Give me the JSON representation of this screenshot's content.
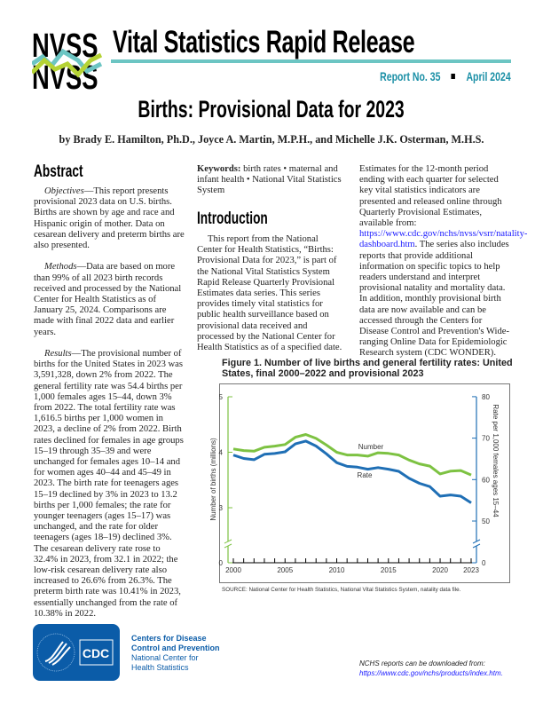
{
  "header": {
    "logo_text": "NVSS",
    "series_title": "Vital Statistics Rapid Release",
    "report_no": "Report No. 35",
    "date": "April 2024"
  },
  "title": "Births: Provisional Data for 2023",
  "authors": "by Brady E. Hamilton, Ph.D., Joyce A. Martin, M.P.H., and Michelle J.K. Osterman, M.H.S.",
  "abstract": {
    "heading": "Abstract",
    "objectives_label": "Objectives",
    "objectives": "—This report presents provisional 2023 data on U.S. births. Births are shown by age and race and Hispanic origin of mother. Data on cesarean delivery and preterm births are also presented.",
    "methods_label": "Methods",
    "methods": "—Data are based on more than 99% of all 2023 birth records received and processed by the National Center for Health Statistics as of January 25, 2024. Comparisons are made with final 2022 data and earlier years.",
    "results_label": "Results",
    "results": "—The provisional number of births for the United States in 2023 was 3,591,328, down 2% from 2022. The general fertility rate was 54.4 births per 1,000 females ages 15–44, down 3% from 2022. The total fertility rate was 1,616.5 births per 1,000 women in 2023, a decline of 2% from 2022. Birth rates declined for females in age groups 15–19 through 35–39 and were unchanged for females ages 10–14 and for women ages 40–44 and 45–49 in 2023. The birth rate for teenagers ages 15–19 declined by 3% in 2023 to 13.2 births per 1,000 females; the rate for younger teenagers (ages 15–17) was unchanged, and the rate for older teenagers (ages 18–19) declined 3%. The cesarean delivery rate rose to 32.4% in 2023, from 32.1 in 2022; the low-risk cesarean delivery rate also increased to 26.6% from 26.3%. The preterm birth rate was 10.41% in 2023, essentially unchanged from the rate of 10.38% in 2022."
  },
  "keywords": {
    "label": "Keywords:",
    "text": " birth rates • maternal and infant health • National Vital Statistics System"
  },
  "introduction": {
    "heading": "Introduction",
    "p1": "This report from the National Center for Health Statistics, “Births: Provisional Data for 2023,” is part of the National Vital Statistics System Rapid Release Quarterly Provisional Estimates data series. This series provides timely vital statistics for public health surveillance based on provisional data received and processed by the National Center for Health Statistics as of a specified date.",
    "p2_a": "Estimates for the 12-month period ending with each quarter for selected key vital statistics indicators are presented and released online through Quarterly Provisional Estimates, available from: ",
    "p2_link": "https://www.cdc.gov/nchs/nvss/vsrr/natality-dashboard.htm",
    "p2_b": ". The series also includes reports that provide additional information on specific topics to help readers understand and interpret provisional natality and mortality data. In addition, monthly provisional birth data are now available and can be accessed through the Centers for Disease Control and Prevention's Wide-ranging Online Data for Epidemiologic Research system (CDC WONDER)."
  },
  "figure": {
    "title": "Figure 1. Number of live births and general fertility rates: United States, final 2000–2022 and provisional 2023",
    "source": "SOURCE: National Center for Health Statistics, National Vital Statistics System, natality data file."
  },
  "chart_data": {
    "type": "line",
    "title": "Figure 1. Number of live births and general fertility rates: United States, final 2000–2022 and provisional 2023",
    "x": [
      2000,
      2001,
      2002,
      2003,
      2004,
      2005,
      2006,
      2007,
      2008,
      2009,
      2010,
      2011,
      2012,
      2013,
      2014,
      2015,
      2016,
      2017,
      2018,
      2019,
      2020,
      2021,
      2022,
      2023
    ],
    "x_ticks": [
      "2000",
      "2005",
      "2010",
      "2015",
      "2020",
      "2023"
    ],
    "ylabel_left": "Number of births (millions)",
    "ylabel_right": "Rate per 1,000 females ages 15–44",
    "y_left_ticks": [
      "0",
      "3",
      "4",
      "5"
    ],
    "y_right_ticks": [
      "0",
      "50",
      "60",
      "70",
      "80"
    ],
    "ylim_left": [
      0,
      5
    ],
    "ylim_right": [
      0,
      80
    ],
    "axis_break": true,
    "series": [
      {
        "name": "Number",
        "axis": "left",
        "color": "#7dc242",
        "values": [
          4.06,
          4.03,
          4.02,
          4.09,
          4.11,
          4.14,
          4.27,
          4.32,
          4.25,
          4.13,
          4.0,
          3.95,
          3.95,
          3.93,
          3.99,
          3.98,
          3.95,
          3.86,
          3.79,
          3.75,
          3.61,
          3.66,
          3.67,
          3.59
        ]
      },
      {
        "name": "Rate",
        "axis": "right",
        "color": "#1f6fb5",
        "values": [
          65.9,
          65.1,
          64.8,
          66.1,
          66.3,
          66.7,
          68.6,
          69.3,
          68.1,
          66.2,
          64.1,
          63.2,
          63.0,
          62.5,
          62.9,
          62.5,
          62.0,
          60.3,
          59.1,
          58.3,
          56.0,
          56.3,
          56.0,
          54.4
        ]
      }
    ]
  },
  "footer": {
    "cdc_logo_text": "CDC",
    "org_line1": "Centers for Disease",
    "org_line2": "Control and Prevention",
    "org_line3": "National Center for",
    "org_line4": "Health Statistics",
    "download_text": "NCHS reports can be downloaded from:",
    "download_link": "https://www.cdc.gov/nchs/products/index.htm."
  }
}
